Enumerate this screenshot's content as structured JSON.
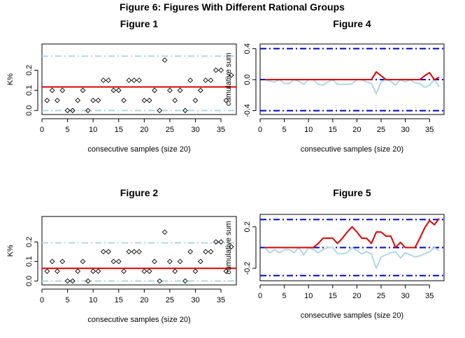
{
  "title": "Figure 6: Figures With Different Rational Groups",
  "colors": {
    "points": "#000000",
    "center_line": "#e00000",
    "limits_light": "#add8e6",
    "limits_dark": "#0000cd",
    "cusum_pos": "#e00000",
    "cusum_neg": "#add8e6"
  },
  "chart_data": [
    {
      "id": "fig1",
      "type": "scatter",
      "title": "Figure 1",
      "xlabel": "consecutive samples (size 20)",
      "ylabel": "K%",
      "xlim": [
        0,
        38
      ],
      "ylim": [
        -0.02,
        0.33
      ],
      "xticks": [
        0,
        5,
        10,
        15,
        20,
        25,
        30,
        35
      ],
      "yticks": [
        0.0,
        0.1,
        0.2
      ],
      "ytick_labels": [
        "0.0",
        "0.1",
        "0.2"
      ],
      "x": [
        1,
        2,
        3,
        4,
        5,
        6,
        7,
        8,
        9,
        10,
        11,
        12,
        13,
        14,
        15,
        16,
        17,
        18,
        19,
        20,
        21,
        22,
        23,
        24,
        25,
        26,
        27,
        28,
        29,
        30,
        31,
        32,
        33,
        34,
        35,
        36,
        37
      ],
      "values": [
        0.05,
        0.1,
        0.05,
        0.1,
        0.0,
        0.0,
        0.05,
        0.1,
        0.0,
        0.05,
        0.05,
        0.15,
        0.15,
        0.1,
        0.1,
        0.05,
        0.15,
        0.15,
        0.15,
        0.05,
        0.05,
        0.1,
        0.0,
        0.25,
        0.1,
        0.05,
        0.1,
        0.0,
        0.15,
        0.05,
        0.1,
        0.15,
        0.15,
        0.2,
        0.2,
        0.05,
        0.175
      ],
      "center_line": 0.117,
      "upper_limit": 0.27,
      "lower_limit": 0.0,
      "grid": false
    },
    {
      "id": "fig4",
      "type": "line",
      "title": "Figure 4",
      "xlabel": "consecutive samples (size 20)",
      "ylabel": "cumulative sum",
      "xlim": [
        0,
        38
      ],
      "ylim": [
        -0.45,
        0.46
      ],
      "xticks": [
        0,
        5,
        10,
        15,
        20,
        25,
        30,
        35
      ],
      "yticks": [
        -0.4,
        0.0,
        0.4
      ],
      "ytick_labels": [
        "-0.4",
        "0.0",
        "0.4"
      ],
      "x": [
        1,
        2,
        3,
        4,
        5,
        6,
        7,
        8,
        9,
        10,
        11,
        12,
        13,
        14,
        15,
        16,
        17,
        18,
        19,
        20,
        21,
        22,
        23,
        24,
        25,
        26,
        27,
        28,
        29,
        30,
        31,
        32,
        33,
        34,
        35,
        36,
        37
      ],
      "series": [
        {
          "values": [
            0.0,
            0.0,
            0.0,
            0.0,
            0.0,
            0.0,
            0.0,
            0.0,
            0.0,
            0.0,
            0.0,
            0.0,
            0.0,
            0.0,
            0.0,
            0.0,
            0.0,
            0.0,
            0.0,
            0.0,
            0.0,
            0.0,
            0.0,
            0.1,
            0.05,
            0.0,
            0.0,
            0.0,
            0.0,
            0.0,
            0.0,
            0.0,
            0.0,
            0.05,
            0.09,
            0.0,
            0.03
          ]
        },
        {
          "values": [
            0.0,
            -0.02,
            -0.03,
            0.0,
            -0.05,
            -0.05,
            0.0,
            -0.02,
            -0.06,
            0.0,
            0.0,
            -0.06,
            -0.07,
            -0.03,
            0.0,
            -0.06,
            -0.06,
            -0.06,
            -0.05,
            0.0,
            0.0,
            -0.03,
            -0.05,
            -0.18,
            -0.03,
            0.0,
            -0.02,
            -0.07,
            0.0,
            -0.03,
            0.0,
            -0.04,
            -0.05,
            -0.1,
            -0.07,
            0.0,
            -0.09
          ]
        }
      ],
      "decision_upper": 0.4,
      "decision_lower": -0.4,
      "center": 0.0,
      "grid": false
    },
    {
      "id": "fig2",
      "type": "scatter",
      "title": "Figure 2",
      "xlabel": "consecutive samples (size 20)",
      "ylabel": "K%",
      "xlim": [
        0,
        38
      ],
      "ylim": [
        -0.02,
        0.33
      ],
      "xticks": [
        0,
        5,
        10,
        15,
        20,
        25,
        30,
        35
      ],
      "yticks": [
        0.0,
        0.1,
        0.2
      ],
      "ytick_labels": [
        "0.0",
        "0.1",
        "0.2"
      ],
      "x": [
        1,
        2,
        3,
        4,
        5,
        6,
        7,
        8,
        9,
        10,
        11,
        12,
        13,
        14,
        15,
        16,
        17,
        18,
        19,
        20,
        21,
        22,
        23,
        24,
        25,
        26,
        27,
        28,
        29,
        30,
        31,
        32,
        33,
        34,
        35,
        36,
        37
      ],
      "values": [
        0.05,
        0.1,
        0.05,
        0.1,
        0.0,
        0.0,
        0.05,
        0.1,
        0.0,
        0.05,
        0.05,
        0.15,
        0.15,
        0.1,
        0.1,
        0.05,
        0.15,
        0.15,
        0.15,
        0.05,
        0.05,
        0.1,
        0.0,
        0.25,
        0.1,
        0.05,
        0.1,
        0.0,
        0.15,
        0.05,
        0.1,
        0.15,
        0.15,
        0.2,
        0.2,
        0.05,
        0.175
      ],
      "center_line": 0.065,
      "upper_limit": 0.195,
      "lower_limit": 0.0,
      "grid": false
    },
    {
      "id": "fig5",
      "type": "line",
      "title": "Figure 5",
      "xlabel": "consecutive samples (size 20)",
      "ylabel": "cumulative sum",
      "xlim": [
        0,
        38
      ],
      "ylim": [
        -0.32,
        0.32
      ],
      "xticks": [
        0,
        5,
        10,
        15,
        20,
        25,
        30,
        35
      ],
      "yticks": [
        -0.2,
        0.2
      ],
      "ytick_labels": [
        "-0.2",
        "0.2"
      ],
      "x": [
        1,
        2,
        3,
        4,
        5,
        6,
        7,
        8,
        9,
        10,
        11,
        12,
        13,
        14,
        15,
        16,
        17,
        18,
        19,
        20,
        21,
        22,
        23,
        24,
        25,
        26,
        27,
        28,
        29,
        30,
        31,
        32,
        33,
        34,
        35,
        36,
        37
      ],
      "series": [
        {
          "values": [
            0.0,
            0.0,
            0.0,
            0.0,
            0.0,
            0.0,
            0.0,
            0.0,
            0.0,
            0.0,
            0.0,
            0.04,
            0.09,
            0.09,
            0.09,
            0.04,
            0.09,
            0.15,
            0.2,
            0.15,
            0.09,
            0.09,
            0.04,
            0.15,
            0.15,
            0.11,
            0.11,
            0.0,
            0.05,
            0.0,
            0.0,
            0.0,
            0.09,
            0.19,
            0.26,
            0.22,
            0.28
          ]
        },
        {
          "values": [
            0.0,
            -0.05,
            -0.02,
            -0.05,
            -0.02,
            -0.02,
            -0.05,
            0.0,
            -0.07,
            0.0,
            -0.02,
            -0.05,
            -0.02,
            0.0,
            0.0,
            -0.06,
            -0.06,
            -0.05,
            0.0,
            -0.03,
            -0.06,
            -0.04,
            -0.06,
            -0.2,
            -0.09,
            -0.07,
            -0.05,
            -0.04,
            -0.1,
            -0.05,
            -0.07,
            -0.09,
            -0.08,
            -0.06,
            -0.04,
            0.0,
            -0.03
          ]
        }
      ],
      "decision_upper": 0.27,
      "decision_lower": -0.27,
      "center": 0.0,
      "grid": false
    }
  ]
}
